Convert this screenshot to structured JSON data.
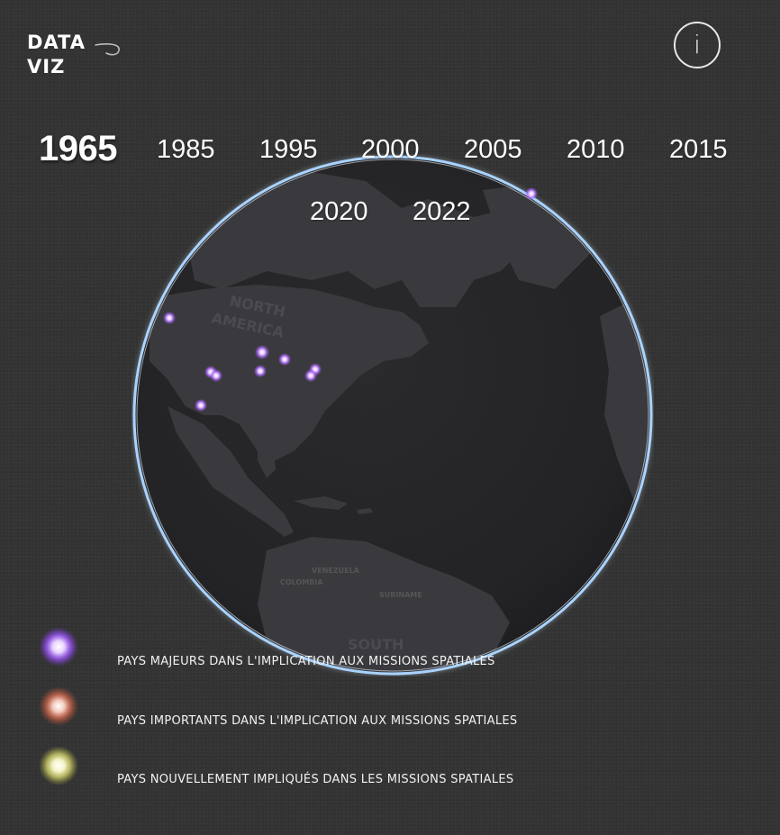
{
  "logo": {
    "line1": "DATA",
    "line2": "VIZ"
  },
  "info_button": {
    "label": "i"
  },
  "timeline": {
    "active": "1965",
    "years": [
      "1965",
      "1985",
      "1995",
      "2000",
      "2005",
      "2010",
      "2015",
      "2020",
      "2022"
    ]
  },
  "map_labels": {
    "north_america_1": "NORTH",
    "north_america_2": "AMERICA",
    "venezuela": "VENEZUELA",
    "colombia": "COLOMBIA",
    "suriname": "SURINAME",
    "south_america": "SOUTH"
  },
  "legend": [
    {
      "label": "PAYS MAJEURS DANS L'IMPLICATION AUX MISSIONS SPATIALES",
      "color": "#b57cff"
    },
    {
      "label": "PAYS IMPORTANTS DANS L'IMPLICATION AUX MISSIONS SPATIALES",
      "color": "#e8806a"
    },
    {
      "label": "PAYS NOUVELLEMENT IMPLIQUÉS DANS LES MISSIONS SPATIALES",
      "color": "#ecec8c"
    }
  ],
  "colors": {
    "background": "#333333",
    "globe_rim": "#a9d3ff",
    "land": "#3c3c40",
    "ocean": "#28282a",
    "marker_major": "#c58cff"
  }
}
